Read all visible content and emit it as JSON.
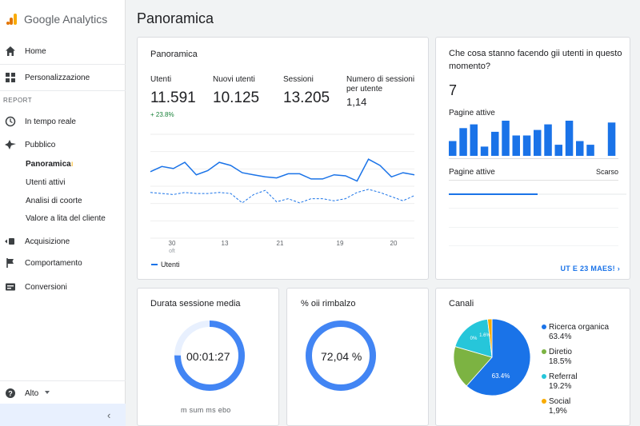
{
  "app": {
    "name": "Google Analytics",
    "page_title": "Panoramica"
  },
  "sidebar": {
    "home": "Home",
    "customization": "Personalizzazione",
    "report_label": "REPORT",
    "realtime": "In tempo reale",
    "audience": "Pubblico",
    "audience_items": [
      {
        "label": "Panoramica",
        "active": true
      },
      {
        "label": "Utenti attivi"
      },
      {
        "label": "Analisi di coorte"
      },
      {
        "label": "Valore a lita del cliente"
      }
    ],
    "acquisition": "Acquisizione",
    "behavior": "Comportamento",
    "conversions": "Conversioni",
    "bottom_label": "Alto",
    "collapse_glyph": "‹"
  },
  "overview": {
    "title": "Panoramica",
    "metrics": [
      {
        "label": "Utenti",
        "value": "11.591",
        "delta": "+ 23.8%"
      },
      {
        "label": "Nuovi utenti",
        "value": "10.125"
      },
      {
        "label": "Sessioni",
        "value": "13.205"
      },
      {
        "label": "Numero di sessioni per utente",
        "value": "1,14"
      }
    ],
    "legend": "Utenti"
  },
  "chart_data": {
    "type": "line",
    "x_ticks": [
      {
        "label": "30",
        "sub": "oft"
      },
      {
        "label": "13"
      },
      {
        "label": "21"
      },
      {
        "label": "19"
      },
      {
        "label": "20"
      }
    ],
    "series": [
      {
        "name": "Utenti",
        "style": "solid",
        "color": "#1a73e8",
        "values": [
          64,
          69,
          67,
          73,
          61,
          65,
          73,
          70,
          63,
          61,
          59,
          58,
          62,
          62,
          57,
          57,
          61,
          60,
          55,
          76,
          70,
          59,
          63,
          61
        ]
      },
      {
        "name": "",
        "style": "dashed",
        "color": "#1a73e8",
        "values": [
          44,
          43,
          42,
          44,
          43,
          43,
          44,
          43,
          34,
          42,
          46,
          35,
          38,
          34,
          38,
          38,
          36,
          38,
          44,
          47,
          44,
          40,
          36,
          41
        ]
      }
    ],
    "ylim": [
      0,
      100
    ],
    "grid": true
  },
  "realtime": {
    "title": "Che cosa stanno facendo gii utenti in questo momento?",
    "count": "7",
    "active_pages_label": "Pagine attive",
    "bars": [
      8,
      15,
      17,
      5,
      13,
      19,
      11,
      11,
      14,
      17,
      6,
      19,
      8,
      6,
      0,
      18
    ],
    "list_label": "Pagine attive",
    "list_right_label": "Scarso",
    "progress": 0.5,
    "link": "UT E 23 MAES! ›"
  },
  "session_card": {
    "title": "Durata sessione media",
    "value": "00:01:27",
    "caption": "m sum ms ebo",
    "fill": 0.75,
    "color": "#4285f4"
  },
  "bounce_card": {
    "title": "% oii rimbalzo",
    "value": "72,04 %",
    "fill": 1.0,
    "color": "#4285f4"
  },
  "channels": {
    "title": "Canali",
    "slices": [
      {
        "name": "Ricerca organica",
        "value": "63.4%",
        "color": "#1a73e8"
      },
      {
        "name": "Diretio",
        "value": "18.5%",
        "color": "#7cb342"
      },
      {
        "name": "Referral",
        "value": "19.2%",
        "color": "#26c6da"
      },
      {
        "name": "Social",
        "value": "1,9%",
        "color": "#f9ab00"
      }
    ],
    "pie_label_main": "63.4%",
    "pie_label_small": "0%",
    "pie_label_tiny": "1.6%"
  }
}
